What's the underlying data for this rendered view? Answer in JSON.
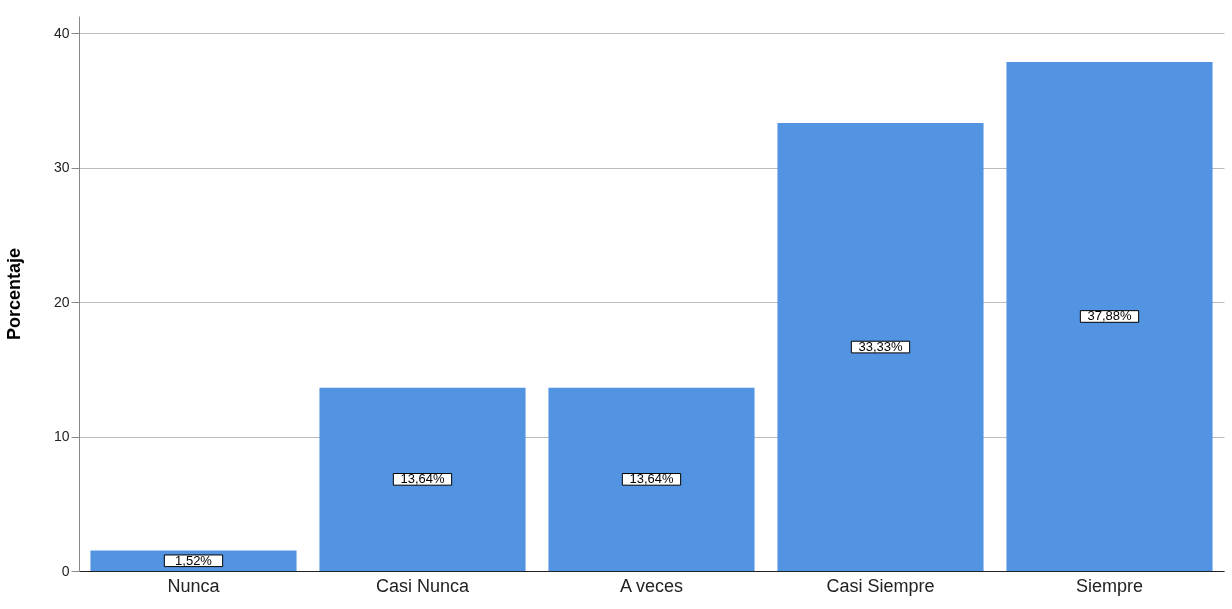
{
  "chart_data": {
    "type": "bar",
    "ylabel": "Porcentaje",
    "categories": [
      "Nunca",
      "Casi Nunca",
      "A veces",
      "Casi Siempre",
      "Siempre"
    ],
    "values": [
      1.52,
      13.64,
      13.64,
      33.33,
      37.88
    ],
    "value_labels": [
      "1,52%",
      "13,64%",
      "13,64%",
      "33,33%",
      "37,88%"
    ],
    "color": "#5294e2",
    "ylim": [
      0,
      41.3
    ],
    "yticks": [
      0,
      10,
      20,
      30,
      40
    ],
    "grid": "y"
  }
}
